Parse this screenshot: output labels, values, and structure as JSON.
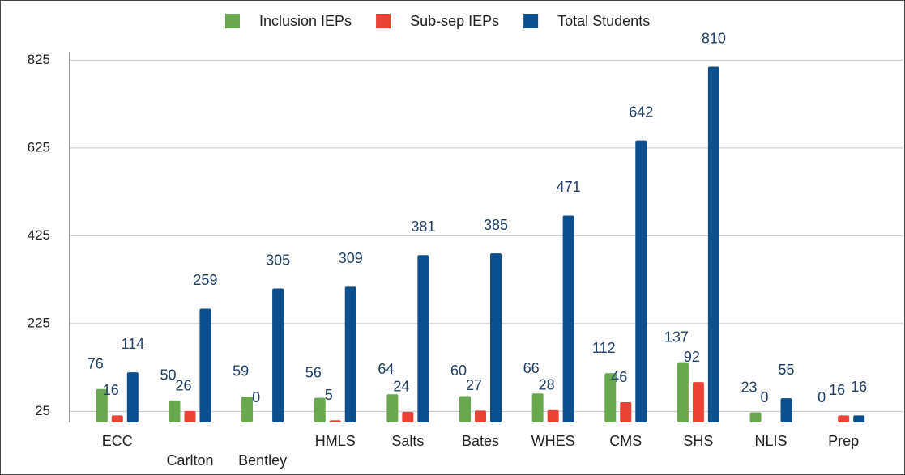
{
  "chart_data": {
    "type": "bar",
    "categories": [
      "ECC",
      "Carlton",
      "Bentley",
      "HMLS",
      "Salts",
      "Bates",
      "WHES",
      "CMS",
      "SHS",
      "NLIS",
      "Prep"
    ],
    "series": [
      {
        "name": "Inclusion IEPs",
        "color": "#6aa84f",
        "values": [
          76,
          50,
          59,
          56,
          64,
          60,
          66,
          112,
          137,
          23,
          0
        ]
      },
      {
        "name": "Sub-sep IEPs",
        "color": "#ea4335",
        "values": [
          16,
          26,
          0,
          5,
          24,
          27,
          28,
          46,
          92,
          0,
          16
        ]
      },
      {
        "name": "Total Students",
        "color": "#0b4f8f",
        "values": [
          114,
          259,
          305,
          309,
          381,
          385,
          471,
          642,
          810,
          55,
          16
        ]
      }
    ],
    "ylim": [
      0,
      940
    ],
    "yticks": [
      25,
      225,
      425,
      625,
      825
    ],
    "grid": true,
    "legend": "top"
  }
}
